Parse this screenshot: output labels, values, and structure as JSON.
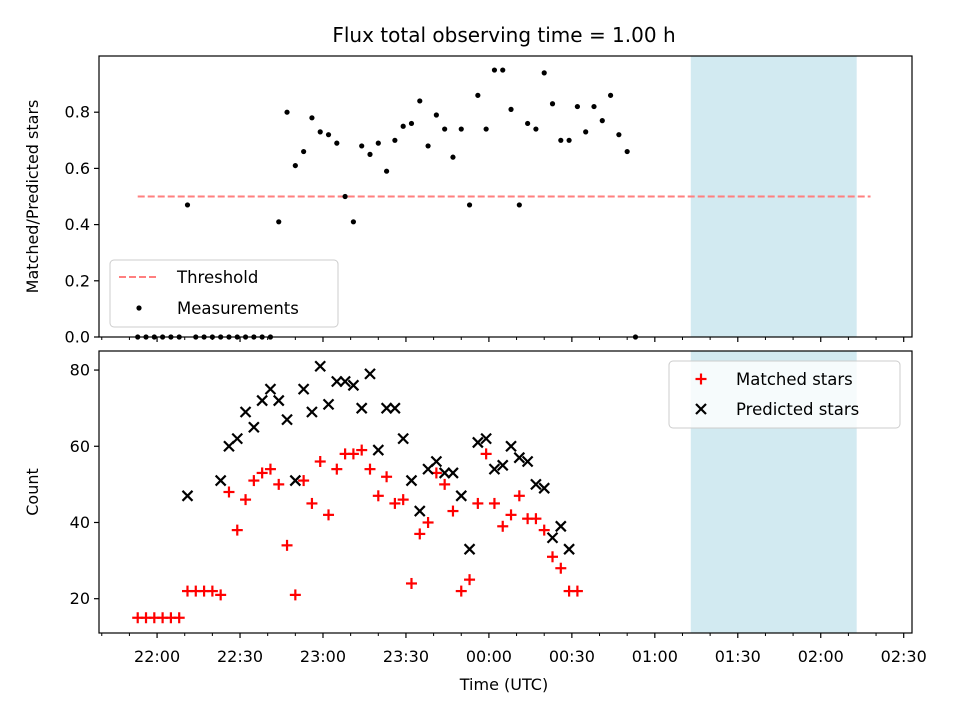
{
  "chart_data": {
    "type": "scatter",
    "title": "Flux total observing time = 1.00 h",
    "xlabel": "Time (UTC)",
    "x_ticks": [
      "22:00",
      "22:30",
      "23:00",
      "23:30",
      "00:00",
      "00:30",
      "01:00",
      "01:30",
      "02:00",
      "02:30"
    ],
    "x_minor_ticks_visible": true,
    "shaded_span": {
      "start": "01:13",
      "end": "02:13",
      "color": "#add8e6"
    },
    "panels": [
      {
        "ylabel": "Matched/Predicted stars",
        "ylim": [
          0,
          1.0
        ],
        "y_ticks": [
          "0.0",
          "0.2",
          "0.4",
          "0.6",
          "0.8"
        ],
        "legend": {
          "position": "lower-left"
        },
        "threshold": {
          "name": "Threshold",
          "value": 0.5,
          "color": "#ff7f7f",
          "style": "dashed",
          "from": "21:53",
          "to": "02:18"
        },
        "series": [
          {
            "name": "Measurements",
            "marker": "dot",
            "color": "#000000",
            "points": [
              [
                "21:53",
                0.0
              ],
              [
                "21:56",
                0.0
              ],
              [
                "21:59",
                0.0
              ],
              [
                "22:02",
                0.0
              ],
              [
                "22:05",
                0.0
              ],
              [
                "22:08",
                0.0
              ],
              [
                "22:11",
                0.47
              ],
              [
                "22:14",
                0.0
              ],
              [
                "22:17",
                0.0
              ],
              [
                "22:20",
                0.0
              ],
              [
                "22:23",
                0.0
              ],
              [
                "22:26",
                0.0
              ],
              [
                "22:29",
                0.0
              ],
              [
                "22:32",
                0.0
              ],
              [
                "22:35",
                0.0
              ],
              [
                "22:38",
                0.0
              ],
              [
                "22:41",
                0.0
              ],
              [
                "22:44",
                0.41
              ],
              [
                "22:47",
                0.8
              ],
              [
                "22:50",
                0.61
              ],
              [
                "22:53",
                0.66
              ],
              [
                "22:56",
                0.78
              ],
              [
                "22:59",
                0.73
              ],
              [
                "23:02",
                0.72
              ],
              [
                "23:05",
                0.69
              ],
              [
                "23:08",
                0.5
              ],
              [
                "23:11",
                0.41
              ],
              [
                "23:14",
                0.68
              ],
              [
                "23:17",
                0.65
              ],
              [
                "23:20",
                0.69
              ],
              [
                "23:23",
                0.59
              ],
              [
                "23:26",
                0.7
              ],
              [
                "23:29",
                0.75
              ],
              [
                "23:32",
                0.76
              ],
              [
                "23:35",
                0.84
              ],
              [
                "23:38",
                0.68
              ],
              [
                "23:41",
                0.79
              ],
              [
                "23:44",
                0.74
              ],
              [
                "23:47",
                0.64
              ],
              [
                "23:50",
                0.74
              ],
              [
                "23:53",
                0.47
              ],
              [
                "23:56",
                0.86
              ],
              [
                "23:59",
                0.74
              ],
              [
                "00:02",
                0.95
              ],
              [
                "00:05",
                0.95
              ],
              [
                "00:08",
                0.81
              ],
              [
                "00:11",
                0.47
              ],
              [
                "00:14",
                0.76
              ],
              [
                "00:17",
                0.74
              ],
              [
                "00:20",
                0.94
              ],
              [
                "00:23",
                0.83
              ],
              [
                "00:26",
                0.7
              ],
              [
                "00:29",
                0.7
              ],
              [
                "00:32",
                0.82
              ],
              [
                "00:35",
                0.73
              ],
              [
                "00:38",
                0.82
              ],
              [
                "00:41",
                0.77
              ],
              [
                "00:44",
                0.86
              ],
              [
                "00:47",
                0.72
              ],
              [
                "00:50",
                0.66
              ],
              [
                "00:53",
                0.0
              ]
            ]
          }
        ]
      },
      {
        "ylabel": "Count",
        "ylim": [
          11,
          85
        ],
        "y_ticks": [
          "20",
          "40",
          "60",
          "80"
        ],
        "legend": {
          "position": "top-right"
        },
        "series": [
          {
            "name": "Matched stars",
            "marker": "plus",
            "color": "#ff0000",
            "points": [
              [
                "21:53",
                15
              ],
              [
                "21:56",
                15
              ],
              [
                "21:59",
                15
              ],
              [
                "22:02",
                15
              ],
              [
                "22:05",
                15
              ],
              [
                "22:08",
                15
              ],
              [
                "22:11",
                22
              ],
              [
                "22:14",
                22
              ],
              [
                "22:17",
                22
              ],
              [
                "22:20",
                22
              ],
              [
                "22:23",
                21
              ],
              [
                "22:26",
                48
              ],
              [
                "22:29",
                38
              ],
              [
                "22:32",
                46
              ],
              [
                "22:35",
                51
              ],
              [
                "22:38",
                53
              ],
              [
                "22:41",
                54
              ],
              [
                "22:44",
                50
              ],
              [
                "22:47",
                34
              ],
              [
                "22:50",
                21
              ],
              [
                "22:53",
                51
              ],
              [
                "22:56",
                45
              ],
              [
                "22:59",
                56
              ],
              [
                "23:02",
                42
              ],
              [
                "23:05",
                54
              ],
              [
                "23:08",
                58
              ],
              [
                "23:11",
                58
              ],
              [
                "23:14",
                59
              ],
              [
                "23:17",
                54
              ],
              [
                "23:20",
                47
              ],
              [
                "23:23",
                52
              ],
              [
                "23:26",
                45
              ],
              [
                "23:29",
                46
              ],
              [
                "23:32",
                24
              ],
              [
                "23:35",
                37
              ],
              [
                "23:38",
                40
              ],
              [
                "23:41",
                53
              ],
              [
                "23:44",
                50
              ],
              [
                "23:47",
                43
              ],
              [
                "23:50",
                22
              ],
              [
                "23:53",
                25
              ],
              [
                "23:56",
                45
              ],
              [
                "23:59",
                58
              ],
              [
                "00:02",
                45
              ],
              [
                "00:05",
                39
              ],
              [
                "00:08",
                42
              ],
              [
                "00:11",
                47
              ],
              [
                "00:14",
                41
              ],
              [
                "00:17",
                41
              ],
              [
                "00:20",
                38
              ],
              [
                "00:23",
                31
              ],
              [
                "00:26",
                28
              ],
              [
                "00:29",
                22
              ],
              [
                "00:32",
                22
              ]
            ]
          },
          {
            "name": "Predicted stars",
            "marker": "x",
            "color": "#000000",
            "points": [
              [
                "22:11",
                47
              ],
              [
                "22:23",
                51
              ],
              [
                "22:26",
                60
              ],
              [
                "22:29",
                62
              ],
              [
                "22:32",
                69
              ],
              [
                "22:35",
                65
              ],
              [
                "22:38",
                72
              ],
              [
                "22:41",
                75
              ],
              [
                "22:44",
                72
              ],
              [
                "22:47",
                67
              ],
              [
                "22:50",
                51
              ],
              [
                "22:53",
                75
              ],
              [
                "22:56",
                69
              ],
              [
                "22:59",
                81
              ],
              [
                "23:02",
                71
              ],
              [
                "23:05",
                77
              ],
              [
                "23:08",
                77
              ],
              [
                "23:11",
                76
              ],
              [
                "23:14",
                70
              ],
              [
                "23:17",
                79
              ],
              [
                "23:20",
                59
              ],
              [
                "23:23",
                70
              ],
              [
                "23:26",
                70
              ],
              [
                "23:29",
                62
              ],
              [
                "23:32",
                51
              ],
              [
                "23:35",
                43
              ],
              [
                "23:38",
                54
              ],
              [
                "23:41",
                56
              ],
              [
                "23:44",
                53
              ],
              [
                "23:47",
                53
              ],
              [
                "23:50",
                47
              ],
              [
                "23:53",
                33
              ],
              [
                "23:56",
                61
              ],
              [
                "23:59",
                62
              ],
              [
                "00:02",
                54
              ],
              [
                "00:05",
                55
              ],
              [
                "00:08",
                60
              ],
              [
                "00:11",
                57
              ],
              [
                "00:14",
                56
              ],
              [
                "00:17",
                50
              ],
              [
                "00:20",
                49
              ],
              [
                "00:23",
                36
              ],
              [
                "00:26",
                39
              ],
              [
                "00:29",
                33
              ]
            ]
          }
        ]
      }
    ]
  }
}
